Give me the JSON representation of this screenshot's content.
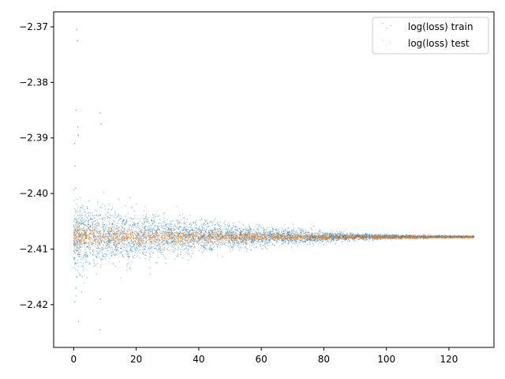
{
  "chart_data": {
    "type": "scatter",
    "title": "",
    "xlabel": "",
    "ylabel": "",
    "xlim": [
      -6.4,
      134.4
    ],
    "ylim": [
      -2.4277,
      -2.3673
    ],
    "x_ticks": [
      0,
      20,
      40,
      60,
      80,
      100,
      120
    ],
    "y_ticks": [
      -2.37,
      -2.38,
      -2.39,
      -2.4,
      -2.41,
      -2.42
    ],
    "x_tick_labels": [
      "0",
      "20",
      "40",
      "60",
      "80",
      "100",
      "120"
    ],
    "y_tick_labels": [
      "−2.37",
      "−2.38",
      "−2.39",
      "−2.40",
      "−2.41",
      "−2.42"
    ],
    "grid": false,
    "legend_position": "top-right",
    "x_range_of_points": [
      0,
      128
    ],
    "series": [
      {
        "name": "log(loss) train",
        "color": "#1f77b4",
        "center": -2.4078,
        "spread_at_start": 0.003,
        "spread_at_end": 0.0001,
        "outliers": [
          {
            "x": 1.0,
            "y": -2.3705
          },
          {
            "x": 1.2,
            "y": -2.3725
          },
          {
            "x": 0.8,
            "y": -2.385
          },
          {
            "x": 1.3,
            "y": -2.388
          },
          {
            "x": 1.5,
            "y": -2.3895
          },
          {
            "x": 8.5,
            "y": -2.3855
          },
          {
            "x": 8.8,
            "y": -2.3875
          },
          {
            "x": 0.3,
            "y": -2.391
          },
          {
            "x": 0.5,
            "y": -2.395
          },
          {
            "x": 0.6,
            "y": -2.399
          },
          {
            "x": 1.5,
            "y": -2.423
          },
          {
            "x": 8.5,
            "y": -2.4245
          },
          {
            "x": 8.6,
            "y": -2.419
          },
          {
            "x": 1.0,
            "y": -2.415
          },
          {
            "x": 0.7,
            "y": -2.417
          },
          {
            "x": 0.3,
            "y": -2.4195
          }
        ]
      },
      {
        "name": "log(loss) test",
        "color": "#ff7f0e",
        "center": -2.4078,
        "spread_at_start": 0.001,
        "spread_at_end": 0.0001,
        "outliers": []
      }
    ]
  }
}
